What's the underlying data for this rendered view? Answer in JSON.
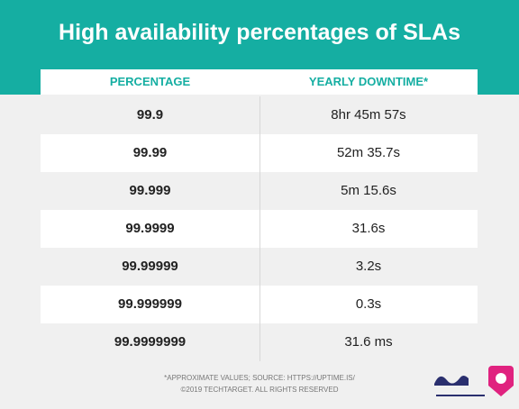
{
  "header": {
    "title": "High availability percentages of SLAs"
  },
  "table": {
    "columns": [
      "PERCENTAGE",
      "YEARLY DOWNTIME*"
    ],
    "rows": [
      [
        "99.9",
        "8hr 45m 57s"
      ],
      [
        "99.99",
        "52m 35.7s"
      ],
      [
        "99.999",
        "5m 15.6s"
      ],
      [
        "99.9999",
        "31.6s"
      ],
      [
        "99.99999",
        "3.2s"
      ],
      [
        "99.999999",
        "0.3s"
      ],
      [
        "99.9999999",
        "31.6 ms"
      ]
    ]
  },
  "footer": {
    "lines": [
      "*APPROXIMATE VALUES; SOURCE: HTTPS://UPTIME.IS/",
      "©2019 TECHTARGET. ALL RIGHTS RESERVED"
    ]
  }
}
